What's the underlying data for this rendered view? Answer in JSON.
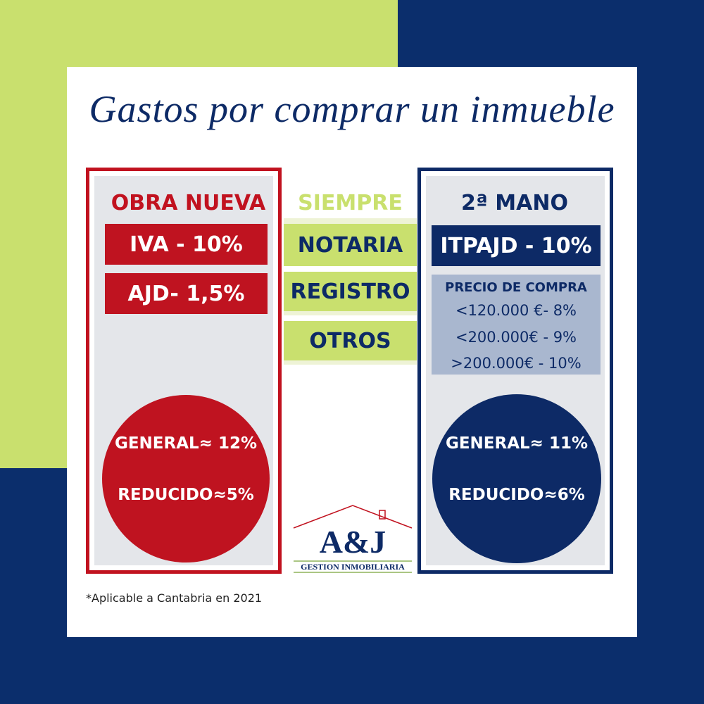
{
  "title": "Gastos por comprar un inmueble",
  "left": {
    "heading": "OBRA NUEVA",
    "items": [
      "IVA - 10%",
      "AJD- 1,5%"
    ],
    "circle": [
      "GENERAL≈ 12%",
      "REDUCIDO≈5%"
    ]
  },
  "middle": {
    "heading": "SIEMPRE",
    "items": [
      "NOTARIA",
      "REGISTRO",
      "OTROS"
    ]
  },
  "right": {
    "heading": "2ª MANO",
    "items": [
      "ITPAJD - 10%"
    ],
    "price_table": {
      "heading": "PRECIO DE COMPRA",
      "rows": [
        "<120.000 €- 8%",
        "<200.000€ - 9%",
        ">200.000€ - 10%"
      ]
    },
    "circle": [
      "GENERAL≈ 11%",
      "REDUCIDO≈6%"
    ]
  },
  "logo": {
    "mark": "A&J",
    "tagline": "GESTION INMOBILIARIA"
  },
  "footnote": "*Aplicable a Cantabria en 2021"
}
